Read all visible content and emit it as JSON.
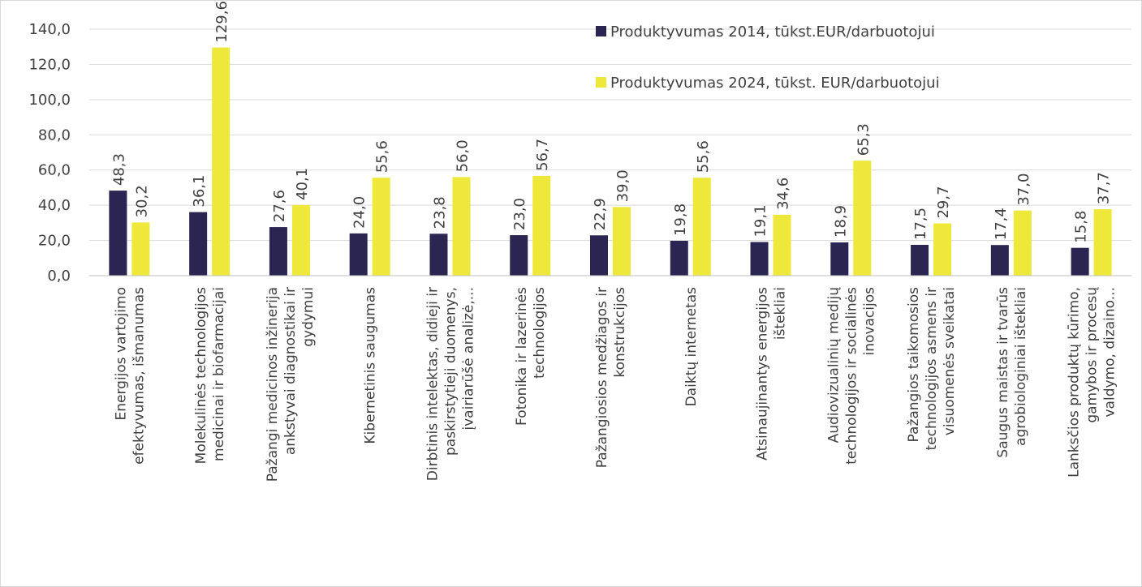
{
  "chart_data": {
    "type": "bar",
    "title": "",
    "xlabel": "",
    "ylabel": "",
    "ylim": [
      0,
      140
    ],
    "ytick_step": 20,
    "ytick_labels": [
      "0,0",
      "20,0",
      "40,0",
      "60,0",
      "80,0",
      "100,0",
      "120,0",
      "140,0"
    ],
    "grid": true,
    "legend_position": "top-right",
    "categories": [
      [
        "Energijos vartojimo",
        "efektyvumas, išmanumas"
      ],
      [
        "Molekulinės technologijos",
        "medicinai ir biofarmacijai"
      ],
      [
        "Pažangi medicinos inžinerija",
        "ankstyvai diagnostikai ir",
        "gydymui"
      ],
      [
        "Kibernetinis saugumas"
      ],
      [
        "Dirbtinis intelektas, didieji ir",
        "paskirstytieji duomenys,",
        "įvairiarūšė analizė,..."
      ],
      [
        "Fotonika ir lazerinės",
        "technologijos"
      ],
      [
        "Pažangiosios medžiagos ir",
        "konstrukcijos"
      ],
      [
        "Daiktų internetas"
      ],
      [
        "Atsinaujinantys energijos",
        "ištekliai"
      ],
      [
        "Audiovizualinių medijų",
        "technologijos ir socialinės",
        "inovacijos"
      ],
      [
        "Pažangios taikomosios",
        "technologijos asmens ir",
        "visuomenės sveikatai"
      ],
      [
        "Saugus maistas ir tvarūs",
        "agrobiologiniai ištekliai"
      ],
      [
        "Lanksčios produktų kūrimo,",
        "gamybos ir procesų",
        "valdymo, dizaino..."
      ]
    ],
    "series": [
      {
        "name": "Produktyvumas 2014, tūkst.EUR/darbuotojui",
        "color": "#2b2552",
        "values": [
          48.3,
          36.1,
          27.6,
          24.0,
          23.8,
          23.0,
          22.9,
          19.8,
          19.1,
          18.9,
          17.5,
          17.4,
          15.8
        ],
        "labels": [
          "48,3",
          "36,1",
          "27,6",
          "24,0",
          "23,8",
          "23,0",
          "22,9",
          "19,8",
          "19,1",
          "18,9",
          "17,5",
          "17,4",
          "15,8"
        ]
      },
      {
        "name": "Produktyvumas 2024, tūkst. EUR/darbuotojui",
        "color": "#ede83a",
        "values": [
          30.2,
          129.6,
          40.1,
          55.6,
          56.0,
          56.7,
          39.0,
          55.6,
          34.6,
          65.3,
          29.7,
          37.0,
          37.7
        ],
        "labels": [
          "30,2",
          "129,6",
          "40,1",
          "55,6",
          "56,0",
          "56,7",
          "39,0",
          "55,6",
          "34,6",
          "65,3",
          "29,7",
          "37,0",
          "37,7"
        ]
      }
    ]
  }
}
